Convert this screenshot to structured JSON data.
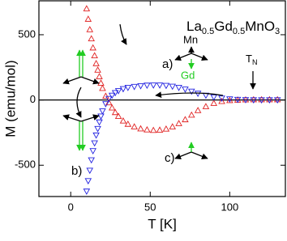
{
  "chart_data": {
    "type": "scatter",
    "title_segments": [
      {
        "text": "La"
      },
      {
        "text": "0.5",
        "sub": true
      },
      {
        "text": "Gd"
      },
      {
        "text": "0.5",
        "sub": true
      },
      {
        "text": "MnO"
      },
      {
        "text": "3",
        "sub": true
      }
    ],
    "x_label": "T [K]",
    "y_label": "M (emu/mol)",
    "annotations": {
      "a": "a)",
      "b": "b)",
      "c": "c)",
      "mn": "Mn",
      "gd": "Gd",
      "tn": "T",
      "tn_sub": "N"
    },
    "x": [
      10,
      11,
      12,
      13,
      14,
      15,
      16,
      17,
      18,
      19,
      20,
      22,
      24,
      26,
      28,
      30,
      33,
      36,
      40,
      44,
      48,
      52,
      56,
      60,
      64,
      68,
      72,
      76,
      80,
      85,
      90,
      95,
      100,
      105,
      110,
      115,
      120,
      125,
      130
    ],
    "series": [
      {
        "color": "#e02020",
        "marker": "triangle-up",
        "values": [
          700,
          620,
          540,
          470,
          400,
          340,
          280,
          230,
          180,
          130,
          90,
          30,
          -20,
          -60,
          -95,
          -125,
          -160,
          -185,
          -205,
          -220,
          -228,
          -232,
          -230,
          -222,
          -205,
          -180,
          -150,
          -115,
          -80,
          -50,
          -25,
          -10,
          -3,
          0,
          2,
          3,
          3,
          3,
          3
        ]
      },
      {
        "color": "#2020e0",
        "marker": "triangle-down",
        "values": [
          -700,
          -620,
          -540,
          -460,
          -390,
          -330,
          -270,
          -220,
          -170,
          -125,
          -85,
          -30,
          10,
          35,
          55,
          70,
          85,
          95,
          102,
          108,
          112,
          113,
          113,
          110,
          104,
          95,
          82,
          66,
          50,
          35,
          22,
          13,
          7,
          3,
          1,
          0,
          0,
          0,
          0
        ]
      }
    ],
    "xlim": [
      -20,
      135
    ],
    "ylim": [
      -740,
      760
    ],
    "xticks": [
      0,
      50,
      100
    ],
    "yticks": [
      -500,
      0,
      500
    ],
    "zero_line": true
  }
}
